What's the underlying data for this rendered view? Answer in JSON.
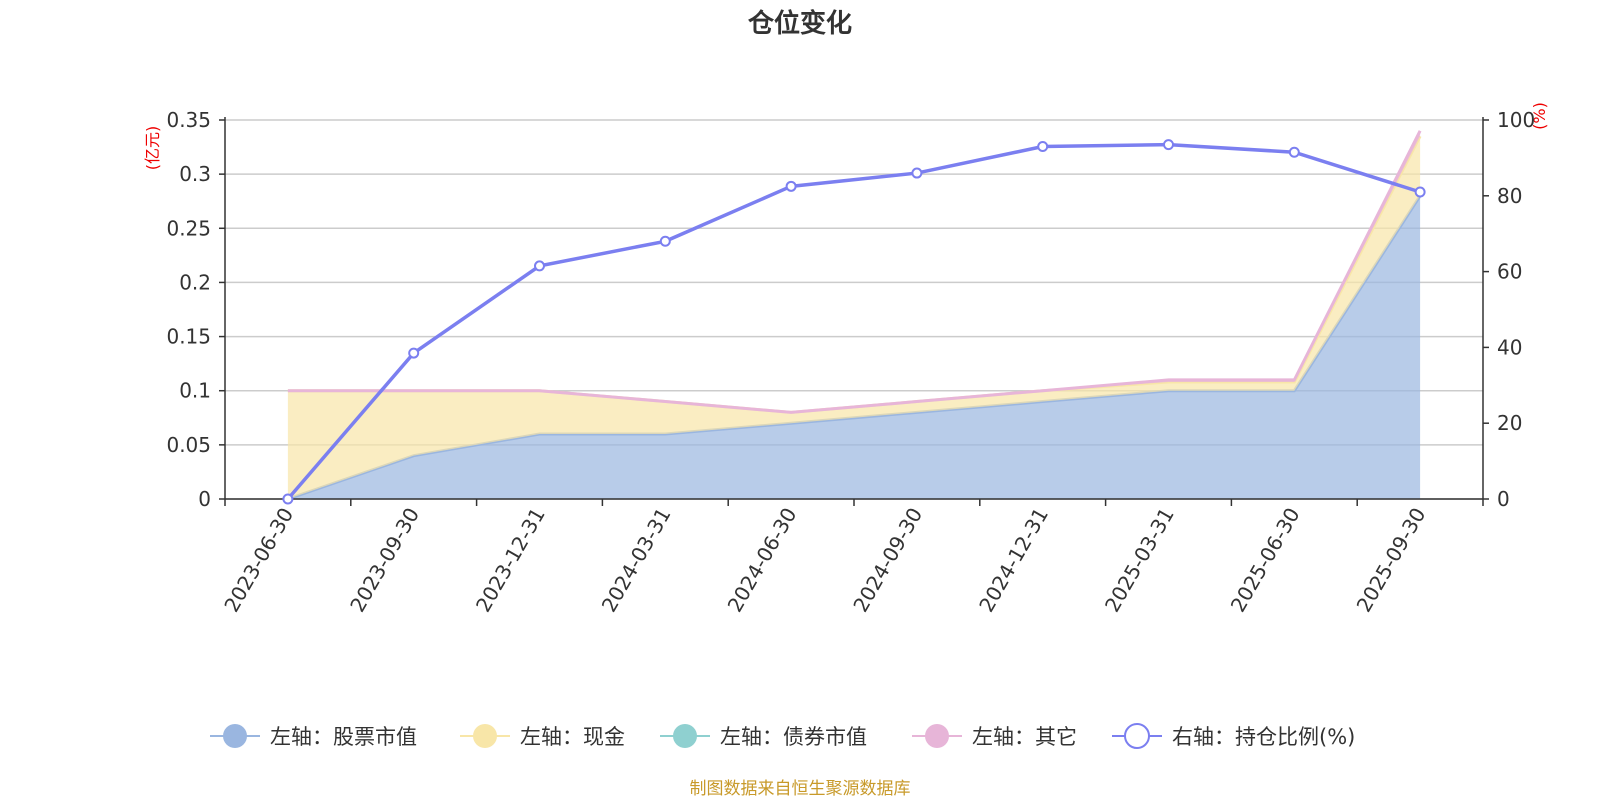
{
  "chart_data": {
    "type": "area",
    "title": "仓位变化",
    "left_unit": "(亿元)",
    "right_unit": "(%)",
    "categories": [
      "2023-06-30",
      "2023-09-30",
      "2023-12-31",
      "2024-03-31",
      "2024-06-30",
      "2024-09-30",
      "2024-12-31",
      "2025-03-31",
      "2025-06-30",
      "2025-09-30"
    ],
    "left_axis": {
      "min": 0,
      "max": 0.35,
      "ticks": [
        "0",
        "0.05",
        "0.1",
        "0.15",
        "0.2",
        "0.25",
        "0.3",
        "0.35"
      ]
    },
    "right_axis": {
      "min": 0,
      "max": 100,
      "ticks": [
        "0",
        "20",
        "40",
        "60",
        "80",
        "100"
      ]
    },
    "stacked": true,
    "series": [
      {
        "name": "左轴：股票市值",
        "axis": "left",
        "color": "#9ab6e0",
        "values": [
          0,
          0.04,
          0.06,
          0.06,
          0.07,
          0.08,
          0.09,
          0.1,
          0.1,
          0.28
        ]
      },
      {
        "name": "左轴：现金",
        "axis": "left",
        "color": "#f8e6a8",
        "values": [
          0.1,
          0.06,
          0.04,
          0.03,
          0.01,
          0.01,
          0.01,
          0.008,
          0.008,
          0.055
        ]
      },
      {
        "name": "左轴：债券市值",
        "axis": "left",
        "color": "#8fd0d0",
        "values": [
          0,
          0,
          0,
          0,
          0,
          0,
          0,
          0,
          0,
          0
        ]
      },
      {
        "name": "左轴：其它",
        "axis": "left",
        "color": "#e7b5d8",
        "values": [
          0,
          0,
          0,
          0,
          0,
          0,
          0,
          0.002,
          0.002,
          0.005
        ]
      },
      {
        "name": "右轴：持仓比例(%)",
        "axis": "right",
        "color": "#7b7ff0",
        "values": [
          0,
          38.5,
          61.5,
          68,
          82.5,
          86,
          93,
          93.5,
          91.5,
          81
        ]
      }
    ],
    "grid": true,
    "legend_position": "bottom"
  },
  "source_note": "制图数据来自恒生聚源数据库"
}
